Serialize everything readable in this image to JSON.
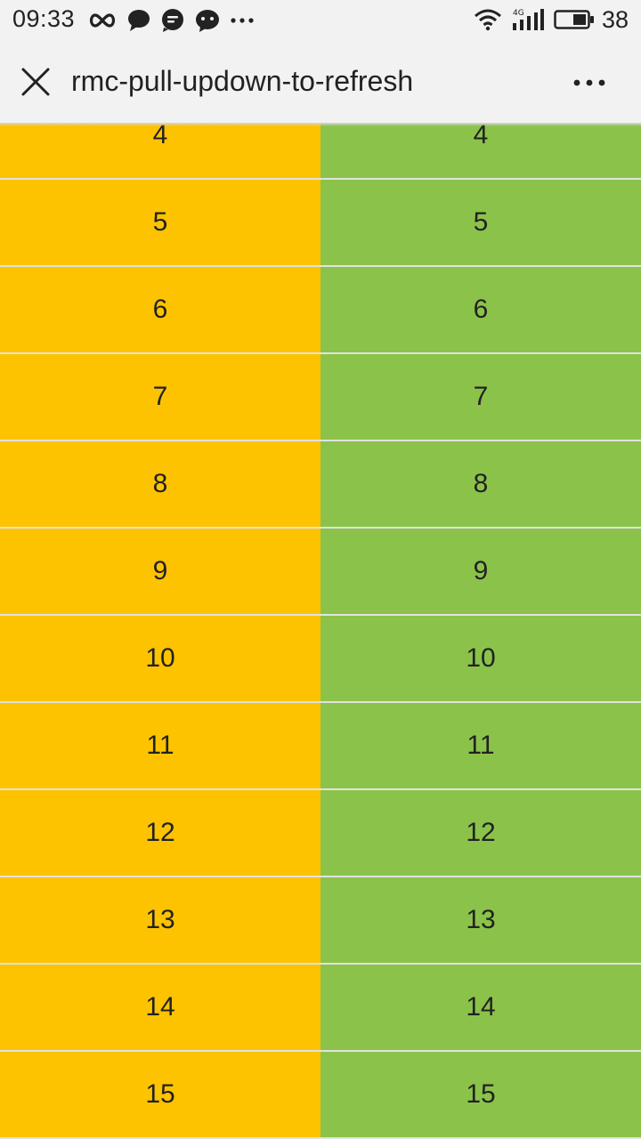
{
  "status_bar": {
    "time": "09:33",
    "left_icons": [
      "infinity-icon",
      "chat-bubble-icon",
      "message-icon",
      "wechat-icon",
      "more-dots-icon"
    ],
    "right_icons": [
      "wifi-icon",
      "signal-4g-icon",
      "battery-icon"
    ],
    "network": "4G",
    "battery": "38"
  },
  "navbar": {
    "title": "rmc-pull-updown-to-refresh",
    "close_icon": "close-icon",
    "more_icon": "more-icon"
  },
  "colors": {
    "left_column": "#fdc300",
    "right_column": "#8bc34a"
  },
  "list": {
    "rows": [
      {
        "left": "4",
        "right": "4"
      },
      {
        "left": "5",
        "right": "5"
      },
      {
        "left": "6",
        "right": "6"
      },
      {
        "left": "7",
        "right": "7"
      },
      {
        "left": "8",
        "right": "8"
      },
      {
        "left": "9",
        "right": "9"
      },
      {
        "left": "10",
        "right": "10"
      },
      {
        "left": "11",
        "right": "11"
      },
      {
        "left": "12",
        "right": "12"
      },
      {
        "left": "13",
        "right": "13"
      },
      {
        "left": "14",
        "right": "14"
      },
      {
        "left": "15",
        "right": "15"
      }
    ]
  }
}
